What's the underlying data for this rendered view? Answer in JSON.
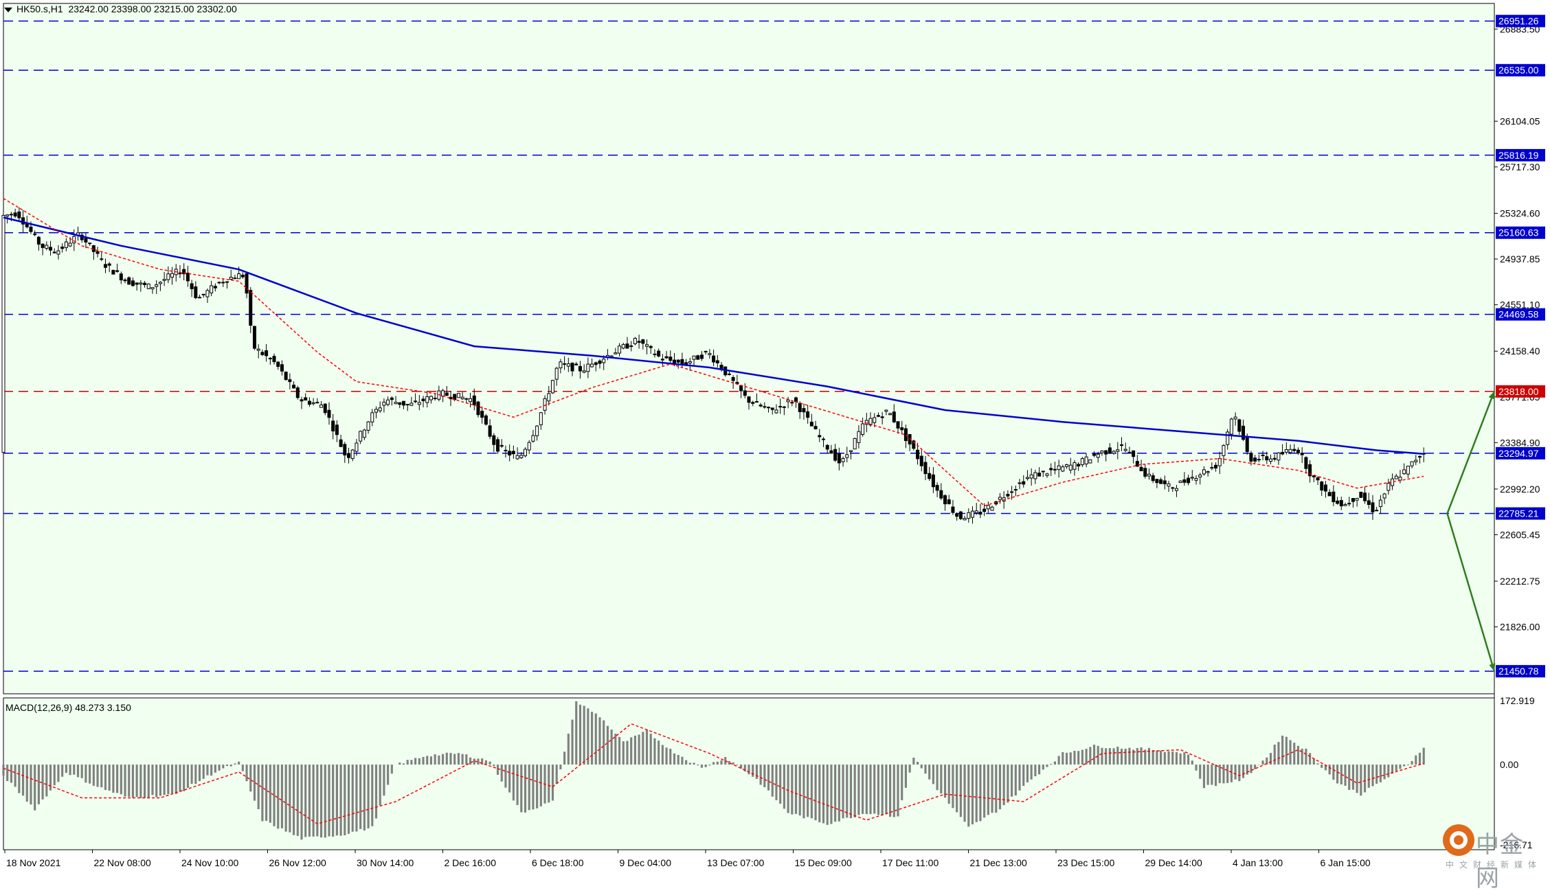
{
  "header": {
    "symbol": "HK50.s,H1",
    "ohlc": "23242.00 23398.00 23215.00 23302.00"
  },
  "macd": {
    "label": "MACD(12,26,9) 48.273 3.150",
    "axis_labels": [
      "172.919",
      "0.00",
      "-216.71"
    ]
  },
  "logo": {
    "brand": "中金网",
    "sub": "中文财经新媒体"
  },
  "colors": {
    "background": "#f0fff0",
    "candle": "#000000",
    "ma_long": "#0000cd",
    "ma_short": "#ff0000",
    "level_blue": "#0000cd",
    "level_red": "#cc0000",
    "arrow": "#2e7d1e",
    "macd_hist": "#808080",
    "macd_signal": "#ff0000"
  },
  "chart_data": {
    "type": "candlestick",
    "title": "HK50.s,H1",
    "y_ticks": [
      {
        "value": 26883.5,
        "label": "26883.50"
      },
      {
        "value": 26104.05,
        "label": "26104.05"
      },
      {
        "value": 25717.3,
        "label": "25717.30"
      },
      {
        "value": 25324.6,
        "label": "25324.60"
      },
      {
        "value": 24937.85,
        "label": "24937.85"
      },
      {
        "value": 24551.1,
        "label": "24551.10"
      },
      {
        "value": 24158.4,
        "label": "24158.40"
      },
      {
        "value": 23771.65,
        "label": "23771.65"
      },
      {
        "value": 23384.9,
        "label": "23384.90"
      },
      {
        "value": 22992.2,
        "label": "22992.20"
      },
      {
        "value": 22605.45,
        "label": "22605.45"
      },
      {
        "value": 22212.75,
        "label": "22212.75"
      },
      {
        "value": 21826.0,
        "label": "21826.00"
      }
    ],
    "levels": [
      {
        "value": 26951.26,
        "label": "26951.26",
        "color": "blue"
      },
      {
        "value": 26535.0,
        "label": "26535.00",
        "color": "blue"
      },
      {
        "value": 25816.19,
        "label": "25816.19",
        "color": "blue"
      },
      {
        "value": 25160.63,
        "label": "25160.63",
        "color": "blue"
      },
      {
        "value": 24469.58,
        "label": "24469.58",
        "color": "blue"
      },
      {
        "value": 23818.0,
        "label": "23818.00",
        "color": "red"
      },
      {
        "value": 23294.97,
        "label": "23294.97",
        "color": "blue"
      },
      {
        "value": 22785.21,
        "label": "22785.21",
        "color": "blue"
      },
      {
        "value": 21450.78,
        "label": "21450.78",
        "color": "blue"
      }
    ],
    "x_labels": [
      "18 Nov 2021",
      "22 Nov 08:00",
      "24 Nov 10:00",
      "26 Nov 12:00",
      "30 Nov 14:00",
      "2 Dec 16:00",
      "6 Dec 18:00",
      "9 Dec 04:00",
      "13 Dec 07:00",
      "15 Dec 09:00",
      "17 Dec 11:00",
      "21 Dec 13:00",
      "23 Dec 15:00",
      "29 Dec 14:00",
      "4 Jan 13:00",
      "6 Jan 15:00"
    ],
    "price_path": [
      [
        0,
        25300
      ],
      [
        4,
        25330
      ],
      [
        10,
        25050
      ],
      [
        14,
        25000
      ],
      [
        20,
        25150
      ],
      [
        26,
        24900
      ],
      [
        32,
        24750
      ],
      [
        38,
        24700
      ],
      [
        46,
        24850
      ],
      [
        50,
        24600
      ],
      [
        56,
        24750
      ],
      [
        60,
        24800
      ],
      [
        62,
        24800
      ],
      [
        64,
        24200
      ],
      [
        70,
        24050
      ],
      [
        76,
        23750
      ],
      [
        82,
        23700
      ],
      [
        88,
        23250
      ],
      [
        94,
        23600
      ],
      [
        98,
        23750
      ],
      [
        104,
        23700
      ],
      [
        112,
        23800
      ],
      [
        120,
        23750
      ],
      [
        126,
        23350
      ],
      [
        132,
        23250
      ],
      [
        136,
        23500
      ],
      [
        142,
        24050
      ],
      [
        148,
        24000
      ],
      [
        156,
        24150
      ],
      [
        162,
        24250
      ],
      [
        168,
        24100
      ],
      [
        174,
        24050
      ],
      [
        180,
        24150
      ],
      [
        184,
        24000
      ],
      [
        190,
        23750
      ],
      [
        196,
        23650
      ],
      [
        202,
        23750
      ],
      [
        208,
        23450
      ],
      [
        214,
        23200
      ],
      [
        220,
        23550
      ],
      [
        226,
        23650
      ],
      [
        232,
        23350
      ],
      [
        238,
        23000
      ],
      [
        244,
        22750
      ],
      [
        250,
        22800
      ],
      [
        256,
        22950
      ],
      [
        262,
        23100
      ],
      [
        268,
        23150
      ],
      [
        274,
        23200
      ],
      [
        280,
        23300
      ],
      [
        286,
        23350
      ],
      [
        292,
        23100
      ],
      [
        298,
        23000
      ],
      [
        304,
        23100
      ],
      [
        310,
        23200
      ],
      [
        314,
        23650
      ],
      [
        318,
        23250
      ],
      [
        324,
        23250
      ],
      [
        330,
        23350
      ],
      [
        334,
        23100
      ],
      [
        338,
        22950
      ],
      [
        342,
        22850
      ],
      [
        346,
        22950
      ],
      [
        350,
        22800
      ],
      [
        354,
        23050
      ],
      [
        358,
        23150
      ],
      [
        362,
        23302
      ]
    ],
    "ma_long": [
      [
        0,
        25290
      ],
      [
        30,
        25050
      ],
      [
        60,
        24850
      ],
      [
        90,
        24480
      ],
      [
        120,
        24200
      ],
      [
        150,
        24120
      ],
      [
        180,
        24020
      ],
      [
        210,
        23860
      ],
      [
        240,
        23660
      ],
      [
        270,
        23560
      ],
      [
        300,
        23480
      ],
      [
        330,
        23400
      ],
      [
        350,
        23320
      ],
      [
        362,
        23290
      ]
    ],
    "ma_short": [
      [
        0,
        25450
      ],
      [
        20,
        25050
      ],
      [
        40,
        24850
      ],
      [
        60,
        24750
      ],
      [
        70,
        24450
      ],
      [
        80,
        24150
      ],
      [
        90,
        23900
      ],
      [
        110,
        23800
      ],
      [
        130,
        23600
      ],
      [
        150,
        23850
      ],
      [
        170,
        24050
      ],
      [
        190,
        23850
      ],
      [
        210,
        23650
      ],
      [
        230,
        23450
      ],
      [
        250,
        22850
      ],
      [
        270,
        23050
      ],
      [
        290,
        23200
      ],
      [
        310,
        23250
      ],
      [
        330,
        23150
      ],
      [
        345,
        23000
      ],
      [
        362,
        23100
      ]
    ],
    "arrows": [
      {
        "from": [
          368,
          22785
        ],
        "to": [
          380,
          23820
        ]
      },
      {
        "from": [
          368,
          22785
        ],
        "to": [
          380,
          21450
        ]
      }
    ],
    "macd_histogram": [
      [
        0,
        -30
      ],
      [
        8,
        -120
      ],
      [
        16,
        -20
      ],
      [
        24,
        -60
      ],
      [
        32,
        -90
      ],
      [
        44,
        -80
      ],
      [
        54,
        -20
      ],
      [
        60,
        5
      ],
      [
        66,
        -150
      ],
      [
        76,
        -200
      ],
      [
        86,
        -190
      ],
      [
        94,
        -170
      ],
      [
        100,
        0
      ],
      [
        108,
        25
      ],
      [
        116,
        30
      ],
      [
        124,
        10
      ],
      [
        132,
        -130
      ],
      [
        140,
        -100
      ],
      [
        146,
        170
      ],
      [
        152,
        130
      ],
      [
        158,
        60
      ],
      [
        164,
        90
      ],
      [
        170,
        40
      ],
      [
        178,
        -10
      ],
      [
        184,
        20
      ],
      [
        192,
        -40
      ],
      [
        200,
        -130
      ],
      [
        210,
        -160
      ],
      [
        220,
        -130
      ],
      [
        228,
        -140
      ],
      [
        232,
        20
      ],
      [
        236,
        -40
      ],
      [
        246,
        -170
      ],
      [
        254,
        -120
      ],
      [
        262,
        -40
      ],
      [
        270,
        30
      ],
      [
        278,
        50
      ],
      [
        286,
        45
      ],
      [
        294,
        40
      ],
      [
        302,
        30
      ],
      [
        306,
        -60
      ],
      [
        316,
        -40
      ],
      [
        322,
        20
      ],
      [
        326,
        80
      ],
      [
        332,
        40
      ],
      [
        340,
        -50
      ],
      [
        346,
        -80
      ],
      [
        352,
        -40
      ],
      [
        358,
        0
      ],
      [
        362,
        48
      ]
    ],
    "macd_signal": [
      [
        0,
        -10
      ],
      [
        20,
        -90
      ],
      [
        40,
        -90
      ],
      [
        60,
        -20
      ],
      [
        80,
        -160
      ],
      [
        100,
        -100
      ],
      [
        120,
        10
      ],
      [
        140,
        -60
      ],
      [
        160,
        110
      ],
      [
        180,
        30
      ],
      [
        200,
        -70
      ],
      [
        220,
        -150
      ],
      [
        240,
        -80
      ],
      [
        260,
        -100
      ],
      [
        280,
        30
      ],
      [
        300,
        40
      ],
      [
        315,
        -30
      ],
      [
        330,
        40
      ],
      [
        345,
        -50
      ],
      [
        362,
        3
      ]
    ]
  }
}
